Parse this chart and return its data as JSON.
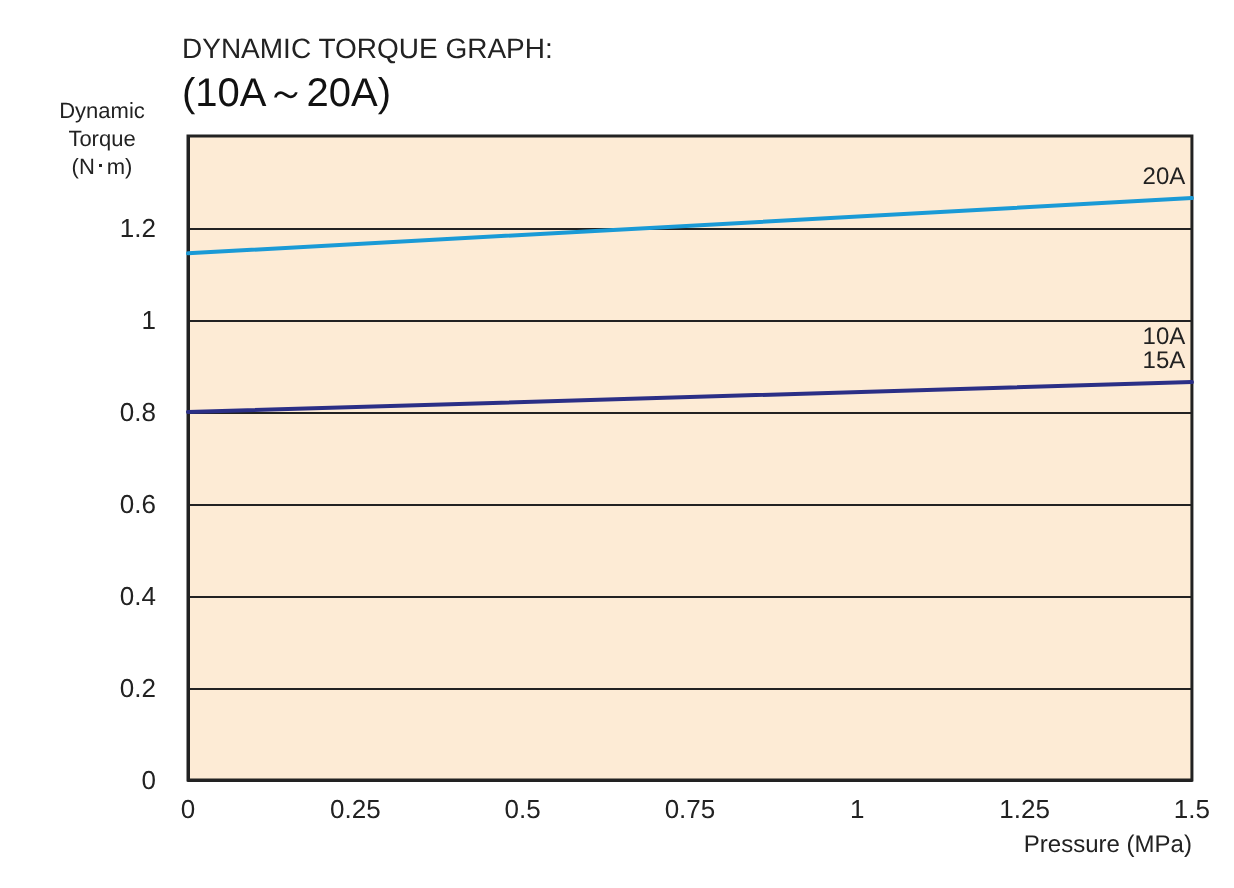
{
  "chart_data": {
    "type": "line",
    "title": "DYNAMIC TORQUE GRAPH:",
    "subtitle": "(10A～20A)",
    "xlabel": "Pressure (MPa)",
    "ylabel": "Dynamic\nTorque\n(N･m)",
    "x": [
      0,
      1.5
    ],
    "series": [
      {
        "name": "20A",
        "color": "#1a9ad6",
        "values": [
          1.145,
          1.265
        ]
      },
      {
        "name": "10A\n15A",
        "color": "#2b2f86",
        "values": [
          0.8,
          0.865
        ]
      }
    ],
    "xlim": [
      0,
      1.5
    ],
    "xticks": [
      0,
      0.25,
      0.5,
      0.75,
      1,
      1.25,
      1.5
    ],
    "ylim": [
      0,
      1.4
    ],
    "yticks": [
      0,
      0.2,
      0.4,
      0.6,
      0.8,
      1,
      1.2
    ],
    "grid": "y",
    "legend": false,
    "marker": "none",
    "line_style": "solid"
  }
}
